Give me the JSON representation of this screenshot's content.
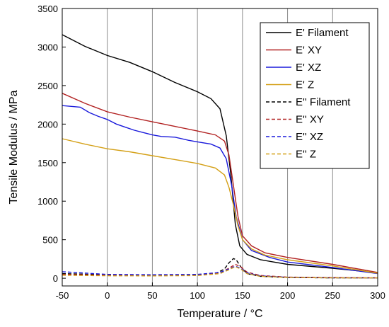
{
  "chart_data": {
    "type": "line",
    "xlabel": "Temperature / °C",
    "ylabel": "Tensile Modulus / MPa",
    "xlim": [
      -50,
      300
    ],
    "ylim": [
      -100,
      3500
    ],
    "xticks": [
      -50,
      0,
      50,
      100,
      150,
      200,
      250,
      300
    ],
    "yticks": [
      0,
      500,
      1000,
      1500,
      2000,
      2500,
      3000,
      3500
    ],
    "grid": "vertical",
    "legend_position": "top-right",
    "series": [
      {
        "name": "E' Filament",
        "color": "#000000",
        "dash": "solid",
        "points": [
          [
            -50,
            3160
          ],
          [
            -25,
            3010
          ],
          [
            0,
            2890
          ],
          [
            25,
            2800
          ],
          [
            50,
            2680
          ],
          [
            75,
            2540
          ],
          [
            100,
            2420
          ],
          [
            115,
            2330
          ],
          [
            125,
            2200
          ],
          [
            132,
            1850
          ],
          [
            137,
            1350
          ],
          [
            142,
            700
          ],
          [
            147,
            420
          ],
          [
            155,
            310
          ],
          [
            170,
            240
          ],
          [
            200,
            180
          ],
          [
            250,
            130
          ],
          [
            300,
            70
          ]
        ]
      },
      {
        "name": "E' XY",
        "color": "#b22222",
        "dash": "solid",
        "points": [
          [
            -50,
            2400
          ],
          [
            -25,
            2270
          ],
          [
            0,
            2160
          ],
          [
            25,
            2090
          ],
          [
            50,
            2030
          ],
          [
            75,
            1970
          ],
          [
            100,
            1910
          ],
          [
            120,
            1860
          ],
          [
            130,
            1780
          ],
          [
            135,
            1600
          ],
          [
            140,
            1200
          ],
          [
            145,
            800
          ],
          [
            150,
            550
          ],
          [
            160,
            420
          ],
          [
            175,
            330
          ],
          [
            200,
            270
          ],
          [
            250,
            180
          ],
          [
            300,
            75
          ]
        ]
      },
      {
        "name": "E' XZ",
        "color": "#1a1adb",
        "dash": "solid",
        "points": [
          [
            -50,
            2240
          ],
          [
            -40,
            2230
          ],
          [
            -30,
            2220
          ],
          [
            -20,
            2150
          ],
          [
            -10,
            2100
          ],
          [
            0,
            2060
          ],
          [
            10,
            2000
          ],
          [
            20,
            1960
          ],
          [
            30,
            1920
          ],
          [
            40,
            1890
          ],
          [
            50,
            1860
          ],
          [
            60,
            1840
          ],
          [
            75,
            1830
          ],
          [
            90,
            1790
          ],
          [
            100,
            1770
          ],
          [
            115,
            1740
          ],
          [
            125,
            1690
          ],
          [
            132,
            1550
          ],
          [
            138,
            1200
          ],
          [
            143,
            800
          ],
          [
            150,
            500
          ],
          [
            160,
            360
          ],
          [
            180,
            270
          ],
          [
            200,
            210
          ],
          [
            250,
            140
          ],
          [
            300,
            60
          ]
        ]
      },
      {
        "name": "E' Z",
        "color": "#d4a017",
        "dash": "solid",
        "points": [
          [
            -50,
            1810
          ],
          [
            -25,
            1740
          ],
          [
            0,
            1680
          ],
          [
            25,
            1640
          ],
          [
            50,
            1590
          ],
          [
            75,
            1540
          ],
          [
            100,
            1490
          ],
          [
            120,
            1430
          ],
          [
            130,
            1340
          ],
          [
            135,
            1180
          ],
          [
            140,
            950
          ],
          [
            145,
            680
          ],
          [
            150,
            500
          ],
          [
            160,
            380
          ],
          [
            175,
            300
          ],
          [
            200,
            240
          ],
          [
            250,
            160
          ],
          [
            300,
            65
          ]
        ]
      },
      {
        "name": "E'' Filament",
        "color": "#000000",
        "dash": "dashed",
        "points": [
          [
            -50,
            60
          ],
          [
            0,
            45
          ],
          [
            50,
            40
          ],
          [
            100,
            45
          ],
          [
            120,
            60
          ],
          [
            130,
            120
          ],
          [
            135,
            200
          ],
          [
            140,
            255
          ],
          [
            143,
            240
          ],
          [
            148,
            150
          ],
          [
            155,
            60
          ],
          [
            170,
            25
          ],
          [
            200,
            10
          ],
          [
            250,
            5
          ],
          [
            300,
            5
          ]
        ]
      },
      {
        "name": "E'' XY",
        "color": "#b22222",
        "dash": "dashed",
        "points": [
          [
            -50,
            50
          ],
          [
            0,
            40
          ],
          [
            50,
            38
          ],
          [
            100,
            45
          ],
          [
            125,
            70
          ],
          [
            135,
            130
          ],
          [
            142,
            180
          ],
          [
            148,
            150
          ],
          [
            155,
            80
          ],
          [
            170,
            35
          ],
          [
            200,
            15
          ],
          [
            250,
            8
          ],
          [
            300,
            5
          ]
        ]
      },
      {
        "name": "E'' XZ",
        "color": "#1a1adb",
        "dash": "dashed",
        "points": [
          [
            -50,
            85
          ],
          [
            0,
            50
          ],
          [
            50,
            45
          ],
          [
            100,
            50
          ],
          [
            125,
            75
          ],
          [
            135,
            120
          ],
          [
            142,
            155
          ],
          [
            148,
            130
          ],
          [
            155,
            70
          ],
          [
            170,
            30
          ],
          [
            200,
            12
          ],
          [
            250,
            6
          ],
          [
            300,
            4
          ]
        ]
      },
      {
        "name": "E'' Z",
        "color": "#d4a017",
        "dash": "dashed",
        "points": [
          [
            -50,
            40
          ],
          [
            0,
            32
          ],
          [
            50,
            30
          ],
          [
            100,
            35
          ],
          [
            125,
            60
          ],
          [
            135,
            110
          ],
          [
            142,
            150
          ],
          [
            148,
            120
          ],
          [
            155,
            60
          ],
          [
            170,
            25
          ],
          [
            200,
            10
          ],
          [
            250,
            5
          ],
          [
            300,
            4
          ]
        ]
      }
    ]
  }
}
